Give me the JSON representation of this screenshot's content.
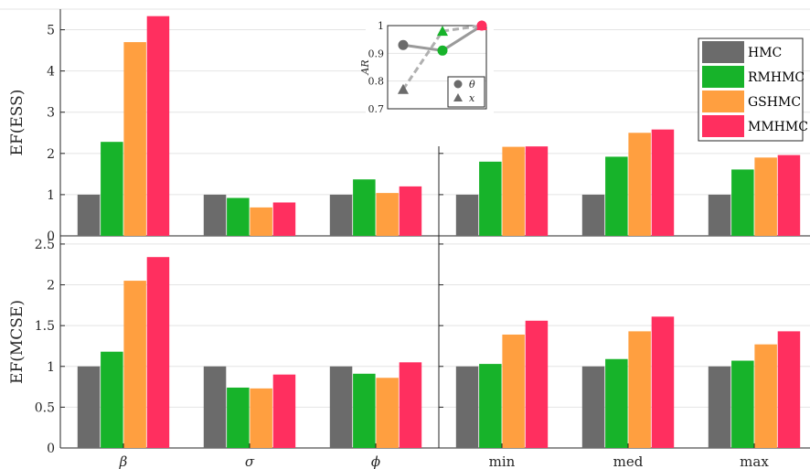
{
  "chart_data": {
    "type": "bar",
    "grid": true,
    "legend_position": "top-right",
    "series": [
      {
        "name": "HMC",
        "color": "#6b6b6b"
      },
      {
        "name": "RMHMC",
        "color": "#17b32a"
      },
      {
        "name": "GSHMC",
        "color": "#ff9f40"
      },
      {
        "name": "MMHMC",
        "color": "#ff2f5f"
      }
    ],
    "categories": [
      "β",
      "σ",
      "ϕ",
      "min",
      "med",
      "max"
    ],
    "panels": [
      {
        "ylabel": "EF(ESS)",
        "ylim": [
          0,
          5.5
        ],
        "yticks": [
          "0",
          "1",
          "2",
          "3",
          "4",
          "5"
        ],
        "values": {
          "HMC": [
            1.0,
            1.0,
            1.0,
            1.0,
            1.0,
            1.0
          ],
          "RMHMC": [
            2.28,
            0.92,
            1.37,
            1.8,
            1.92,
            1.61
          ],
          "GSHMC": [
            4.7,
            0.69,
            1.04,
            2.16,
            2.5,
            1.9
          ],
          "MMHMC": [
            5.33,
            0.81,
            1.2,
            2.17,
            2.58,
            1.96
          ]
        }
      },
      {
        "ylabel": "EF(MCSE)",
        "ylim": [
          0,
          2.6
        ],
        "yticks": [
          "0",
          "0.5",
          "1",
          "1.5",
          "2",
          "2.5"
        ],
        "values": {
          "HMC": [
            1.0,
            1.0,
            1.0,
            1.0,
            1.0,
            1.0
          ],
          "RMHMC": [
            1.18,
            0.74,
            0.91,
            1.03,
            1.09,
            1.07
          ],
          "GSHMC": [
            2.05,
            0.73,
            0.86,
            1.39,
            1.43,
            1.27
          ],
          "MMHMC": [
            2.34,
            0.9,
            1.05,
            1.56,
            1.61,
            1.43
          ]
        }
      }
    ],
    "inset": {
      "type": "line",
      "ylabel": "AR",
      "ylim": [
        0.7,
        1.0
      ],
      "yticks": [
        "0.7",
        "0.8",
        "0.9",
        "1"
      ],
      "theta": [
        0.93,
        0.91,
        1.0
      ],
      "x": [
        0.77,
        0.98,
        1.0
      ],
      "legend": [
        {
          "label": "θ",
          "marker": "circle"
        },
        {
          "label": "x",
          "marker": "triangle"
        }
      ]
    }
  }
}
